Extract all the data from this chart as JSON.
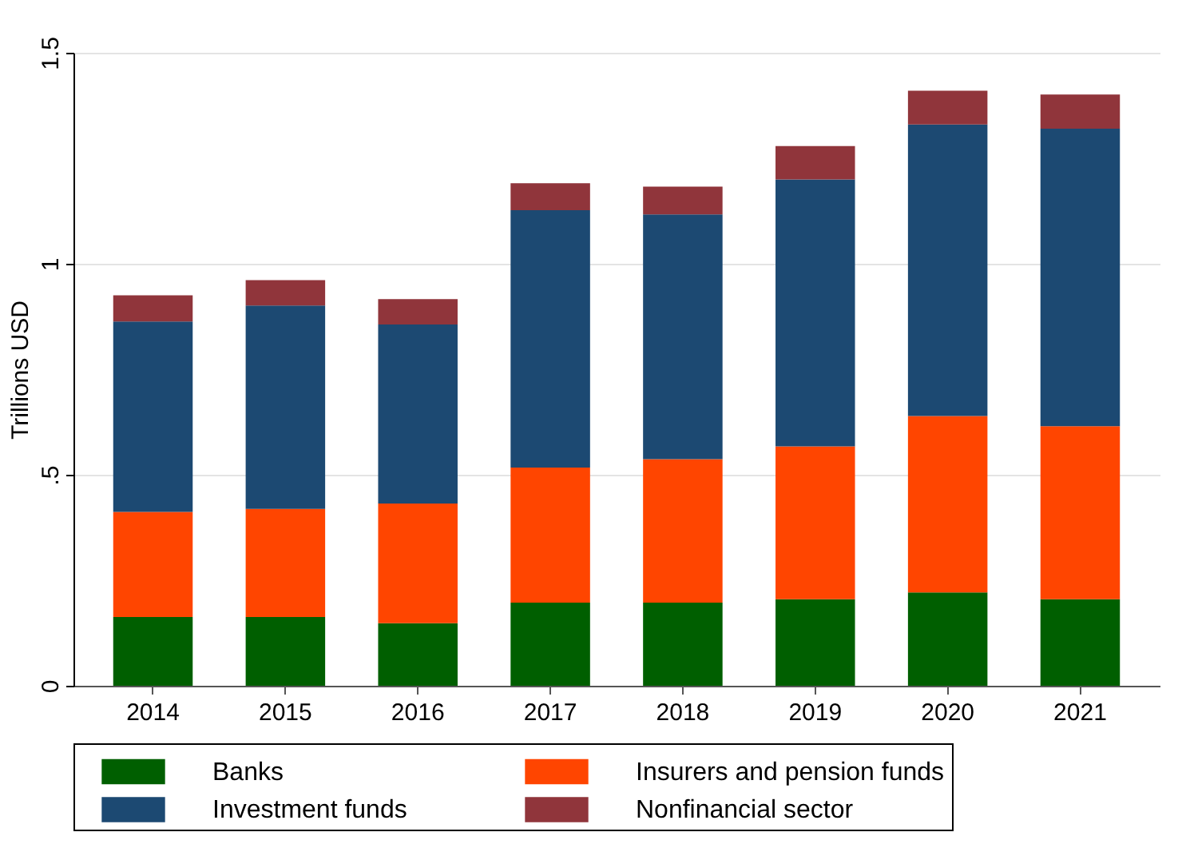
{
  "chart_data": {
    "type": "bar",
    "stacked": true,
    "ylabel": "Trillions USD",
    "categories": [
      "2014",
      "2015",
      "2016",
      "2017",
      "2018",
      "2019",
      "2020",
      "2021"
    ],
    "series": [
      {
        "name": "Banks",
        "color": "#005f00",
        "values": [
          0.163,
          0.163,
          0.148,
          0.197,
          0.197,
          0.205,
          0.221,
          0.205
        ]
      },
      {
        "name": "Insurers and pension funds",
        "color": "#ff4500",
        "values": [
          0.249,
          0.256,
          0.284,
          0.32,
          0.34,
          0.362,
          0.418,
          0.41
        ]
      },
      {
        "name": "Investment funds",
        "color": "#1c4972",
        "values": [
          0.451,
          0.482,
          0.424,
          0.61,
          0.58,
          0.633,
          0.691,
          0.705
        ]
      },
      {
        "name": "Nonfinancial sector",
        "color": "#90353b",
        "values": [
          0.062,
          0.06,
          0.06,
          0.064,
          0.066,
          0.079,
          0.08,
          0.081
        ]
      }
    ],
    "ylim": [
      0,
      1.5
    ],
    "yticks": [
      0,
      {
        "value": 0.5,
        "label": ".5"
      },
      1,
      1.5
    ],
    "grid": "y",
    "legend": "bottom"
  }
}
